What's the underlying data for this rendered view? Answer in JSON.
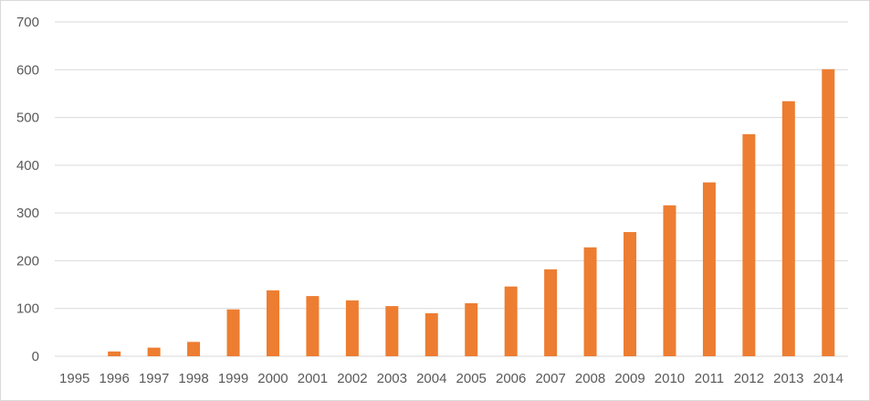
{
  "chart_data": {
    "type": "bar",
    "title": "",
    "xlabel": "",
    "ylabel": "",
    "categories": [
      "1995",
      "1996",
      "1997",
      "1998",
      "1999",
      "2000",
      "2001",
      "2002",
      "2003",
      "2004",
      "2005",
      "2006",
      "2007",
      "2008",
      "2009",
      "2010",
      "2011",
      "2012",
      "2013",
      "2014"
    ],
    "series": [
      {
        "values": [
          0,
          10,
          18,
          30,
          98,
          138,
          126,
          117,
          105,
          90,
          111,
          146,
          182,
          228,
          260,
          316,
          364,
          465,
          534,
          601
        ]
      }
    ],
    "ylim": [
      0,
      700
    ],
    "yticks": [
      0,
      100,
      200,
      300,
      400,
      500,
      600,
      700
    ],
    "grid": true,
    "legend": "none",
    "bar_color": "#ED7D31"
  }
}
